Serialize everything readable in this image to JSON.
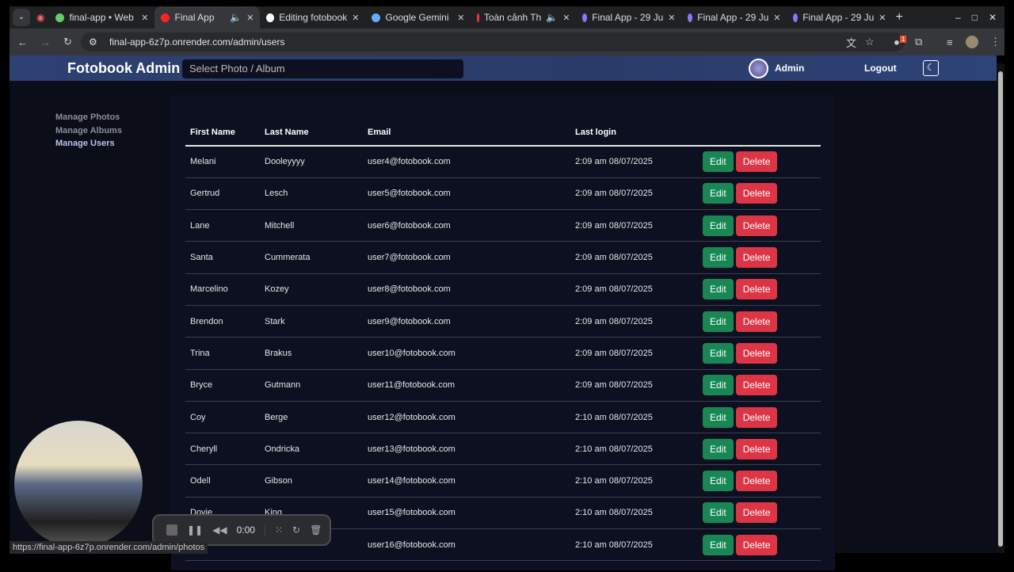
{
  "browser": {
    "tabs": [
      {
        "title": "final-app • Web",
        "icon": "render-icon",
        "active": false
      },
      {
        "title": "Final App",
        "icon": "record-dot-icon",
        "active": true,
        "audio": true
      },
      {
        "title": "Editing fotobook",
        "icon": "github-icon",
        "active": false
      },
      {
        "title": "Google Gemini",
        "icon": "gemini-icon",
        "active": false
      },
      {
        "title": "Toàn cảnh Th",
        "icon": "youtube-icon",
        "active": false,
        "audio": true
      },
      {
        "title": "Final App - 29 Ju",
        "icon": "gear-icon",
        "active": false
      },
      {
        "title": "Final App - 29 Ju",
        "icon": "gear-icon",
        "active": false
      },
      {
        "title": "Final App - 29 Ju",
        "icon": "gear-icon",
        "active": false
      }
    ],
    "url": "final-app-6z7p.onrender.com/admin/users",
    "status_url": "https://final-app-6z7p.onrender.com/admin/photos",
    "extension_badge": "1"
  },
  "navbar": {
    "brand": "Fotobook Admin",
    "search_placeholder": "Select Photo / Album",
    "user": "Admin",
    "logout": "Logout"
  },
  "sidebar": {
    "items": [
      {
        "label": "Manage Photos"
      },
      {
        "label": "Manage Albums"
      },
      {
        "label": "Manage Users",
        "current": true
      }
    ]
  },
  "table": {
    "headers": [
      "First Name",
      "Last Name",
      "Email",
      "Last login"
    ],
    "edit_label": "Edit",
    "delete_label": "Delete",
    "rows": [
      [
        "Melani",
        "Dooleyyyy",
        "user4@fotobook.com",
        "2:09 am 08/07/2025"
      ],
      [
        "Gertrud",
        "Lesch",
        "user5@fotobook.com",
        "2:09 am 08/07/2025"
      ],
      [
        "Lane",
        "Mitchell",
        "user6@fotobook.com",
        "2:09 am 08/07/2025"
      ],
      [
        "Santa",
        "Cummerata",
        "user7@fotobook.com",
        "2:09 am 08/07/2025"
      ],
      [
        "Marcelino",
        "Kozey",
        "user8@fotobook.com",
        "2:09 am 08/07/2025"
      ],
      [
        "Brendon",
        "Stark",
        "user9@fotobook.com",
        "2:09 am 08/07/2025"
      ],
      [
        "Trina",
        "Brakus",
        "user10@fotobook.com",
        "2:09 am 08/07/2025"
      ],
      [
        "Bryce",
        "Gutmann",
        "user11@fotobook.com",
        "2:09 am 08/07/2025"
      ],
      [
        "Coy",
        "Berge",
        "user12@fotobook.com",
        "2:10 am 08/07/2025"
      ],
      [
        "Cheryll",
        "Ondricka",
        "user13@fotobook.com",
        "2:10 am 08/07/2025"
      ],
      [
        "Odell",
        "Gibson",
        "user14@fotobook.com",
        "2:10 am 08/07/2025"
      ],
      [
        "Dovie",
        "King",
        "user15@fotobook.com",
        "2:10 am 08/07/2025"
      ],
      [
        "",
        "",
        "user16@fotobook.com",
        "2:10 am 08/07/2025"
      ]
    ]
  },
  "recorder": {
    "time": "0:00"
  },
  "colors": {
    "edit": "#198754",
    "delete": "#dc3545",
    "navbar": "#2d4172",
    "background": "#0b0d18"
  }
}
